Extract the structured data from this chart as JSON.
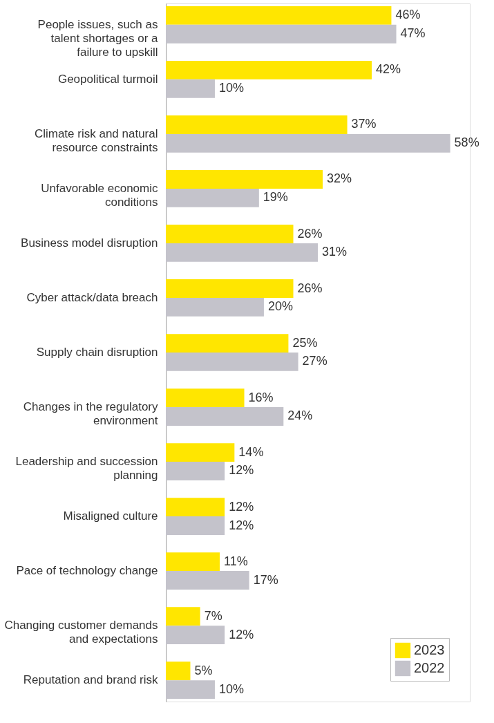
{
  "chart_data": {
    "type": "bar",
    "orientation": "horizontal",
    "xlim": [
      0,
      62
    ],
    "tick_labels": "y",
    "legend": "bottom right",
    "categories": [
      "People issues, such as talent shortages or a failure to upskill",
      "Geopolitical turmoil",
      "Climate risk and natural resource constraints",
      "Unfavorable economic conditions",
      "Business model disruption",
      "Cyber attack/data breach",
      "Supply chain disruption",
      "Changes in the regulatory environment",
      "Leadership and succession planning",
      "Misaligned culture",
      "Pace of technology change",
      "Changing customer demands and expectations",
      "Reputation and brand risk"
    ],
    "series": [
      {
        "name": "2023",
        "color": "#ffe600",
        "values": [
          46,
          42,
          37,
          32,
          26,
          26,
          25,
          16,
          14,
          12,
          11,
          7,
          5
        ],
        "value_labels": [
          "46%",
          "42%",
          "37%",
          "32%",
          "26%",
          "26%",
          "25%",
          "16%",
          "14%",
          "12%",
          "11%",
          "7%",
          "5%"
        ]
      },
      {
        "name": "2022",
        "color": "#c4c3cb",
        "values": [
          47,
          10,
          58,
          19,
          31,
          20,
          27,
          24,
          12,
          12,
          17,
          12,
          10
        ],
        "value_labels": [
          "47%",
          "10%",
          "58%",
          "19%",
          "31%",
          "20%",
          "27%",
          "24%",
          "12%",
          "12%",
          "17%",
          "12%",
          "10%"
        ]
      }
    ]
  }
}
